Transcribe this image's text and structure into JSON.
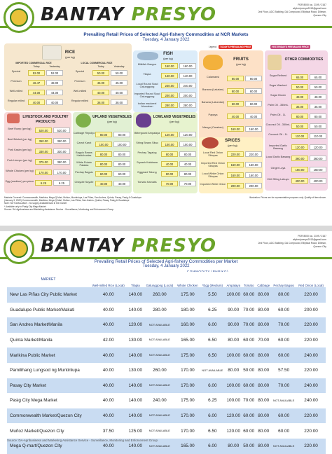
{
  "brand": {
    "name_a": "BANTAY",
    "name_b": "PRESYO"
  },
  "header": {
    "address_lines": [
      "PDR 8000 loc. 2199 / 2167",
      "afpbml.presyo2013@gmail.com",
      "2nd Floor, ADC Building, DA Compound, Elliptical Road, Diliman,",
      "Quezon City"
    ]
  },
  "page1": {
    "title": "Prevailing Retail Prices of Selected Agri-fishery Commodities at NCR Markets",
    "date": "Tuesday, 4 January 2022",
    "legend": {
      "label": "Legend:",
      "today": "TODAY'S PREVAILING PRICE",
      "yesterday": "YESTERDAY'S PREVAILING PRICE"
    },
    "col_today": "Today",
    "col_yesterday": "Yesterday",
    "rice": {
      "title": "RICE",
      "unit": "(per kg)",
      "imported_label": "IMPORTED COMMERCIAL RICE",
      "local_label": "LOCAL COMMERCIAL RICE",
      "imported": [
        {
          "name": "Special",
          "today": "52.00",
          "yesterday": "52.00"
        },
        {
          "name": "Premium",
          "today": "46.47",
          "yesterday": "48.00"
        },
        {
          "name": "Well-milled",
          "today": "44.00",
          "yesterday": "44.00"
        },
        {
          "name": "Regular milled",
          "today": "40.00",
          "yesterday": "40.00"
        }
      ],
      "local": [
        {
          "name": "Special",
          "today": "50.00",
          "yesterday": "50.00"
        },
        {
          "name": "Premium",
          "today": "45.00",
          "yesterday": "45.00"
        },
        {
          "name": "Well-milled",
          "today": "40.00",
          "yesterday": "40.00"
        },
        {
          "name": "Regular milled",
          "today": "38.00",
          "yesterday": "38.00"
        }
      ]
    },
    "fish": {
      "title": "FISH",
      "unit": "(per kg)",
      "items": [
        {
          "name": "Milkfish Bangus",
          "today": "160.00",
          "yesterday": "160.00"
        },
        {
          "name": "Tilapia",
          "today": "140.00",
          "yesterday": "140.00"
        },
        {
          "name": "Local Round Scad Galunggong",
          "today": "240.00",
          "yesterday": "240.00"
        },
        {
          "name": "Imported Round Scad Galunggong",
          "today": "200.00",
          "yesterday": "200.00"
        },
        {
          "name": "Indian mackerel Alumahan",
          "today": "280.00",
          "yesterday": "280.00"
        }
      ]
    },
    "fruits": {
      "title": "FRUITS",
      "unit": "(per kg)",
      "items": [
        {
          "name": "Calamansi",
          "today": "80.00",
          "yesterday": "80.00"
        },
        {
          "name": "Banana (Lakatan)",
          "today": "80.00",
          "yesterday": "80.00"
        },
        {
          "name": "Banana (Latundan)",
          "today": "60.00",
          "yesterday": "60.00"
        },
        {
          "name": "Papaya",
          "today": "40.00",
          "yesterday": "40.00"
        },
        {
          "name": "Mango (Carabao)",
          "today": "160.00",
          "yesterday": "160.00"
        }
      ]
    },
    "other": {
      "title": "OTHER COMMODITIES",
      "items": [
        {
          "name": "Sugar Refined",
          "today": "65.00",
          "yesterday": "65.00"
        },
        {
          "name": "Sugar Washed",
          "today": "50.00",
          "yesterday": "50.00"
        },
        {
          "name": "Sugar Brown",
          "today": "48.00",
          "yesterday": "48.00"
        },
        {
          "name": "Palm Oil - 350mL",
          "today": "35.00",
          "yesterday": "35.00"
        },
        {
          "name": "Palm Oil - 1L",
          "today": "80.00",
          "yesterday": "80.00"
        },
        {
          "name": "Coconut Oil - 350mL",
          "today": "50.00",
          "yesterday": "50.00"
        },
        {
          "name": "Coconut Oil - 1L",
          "today": "110.00",
          "yesterday": "110.00"
        }
      ]
    },
    "livestock": {
      "title": "LIVESTOCK AND POULTRY PRODUCTS",
      "items": [
        {
          "name": "Beef Rump (per kg)",
          "today": "520.00",
          "yesterday": "520.00"
        },
        {
          "name": "Beef Brisket (per kg)",
          "today": "350.00",
          "yesterday": "350.00"
        },
        {
          "name": "Pork Kasim (per kg)",
          "today": "330.00",
          "yesterday": "330.00"
        },
        {
          "name": "Pork Liempo (per kg)",
          "today": "375.00",
          "yesterday": "380.00"
        },
        {
          "name": "Whole Chicken (per kg)",
          "today": "170.00",
          "yesterday": "170.00"
        },
        {
          "name": "Egg (medium) per piece",
          "today": "6.25",
          "yesterday": "6.25"
        }
      ]
    },
    "upland": {
      "title": "UPLAND VEGETABLES",
      "unit": "(per kg)",
      "items": [
        {
          "name": "Cabbage Repolyo",
          "today": "80.00",
          "yesterday": "80.00"
        },
        {
          "name": "Carrot Karot",
          "today": "100.00",
          "yesterday": "100.00"
        },
        {
          "name": "Baguio Beans Habichuelas",
          "today": "80.00",
          "yesterday": "80.00"
        },
        {
          "name": "White Potato Patatas",
          "today": "80.00",
          "yesterday": "80.00"
        },
        {
          "name": "Pechay Baguio",
          "today": "60.00",
          "yesterday": "60.00"
        },
        {
          "name": "Chayote Sayote",
          "today": "40.00",
          "yesterday": "40.00"
        }
      ]
    },
    "lowland": {
      "title": "LOWLAND VEGETABLES",
      "unit": "(per kg)",
      "items": [
        {
          "name": "Bittergourd Ampalaya",
          "today": "120.00",
          "yesterday": "120.00"
        },
        {
          "name": "String Beans Sitao",
          "today": "100.00",
          "yesterday": "100.00"
        },
        {
          "name": "Pechay Tagalog",
          "today": "80.00",
          "yesterday": "80.00"
        },
        {
          "name": "Squash Kalabasa",
          "today": "40.00",
          "yesterday": "40.00"
        },
        {
          "name": "Eggplant Talong",
          "today": "80.00",
          "yesterday": "80.00"
        },
        {
          "name": "Tomato Kamatis",
          "today": "70.00",
          "yesterday": "70.00"
        }
      ]
    },
    "spices": {
      "title": "SPICES",
      "unit": "(per kg)",
      "items": [
        {
          "name": "Local Red Onion Sibuyas",
          "today": "220.00",
          "yesterday": "220.00"
        },
        {
          "name": "Imported Red Onion Sibuyas",
          "today": "160.00",
          "yesterday": "160.00"
        },
        {
          "name": "Local White Onion Sibuyas",
          "today": "160.00",
          "yesterday": "160.00"
        },
        {
          "name": "Imported White Onion",
          "today": "200.00",
          "yesterday": "200.00"
        }
      ]
    },
    "other2": {
      "items": [
        {
          "name": "Imported Garlic Bawang",
          "today": "120.00",
          "yesterday": "120.00"
        },
        {
          "name": "Local Garlic Bawang",
          "today": "360.00",
          "yesterday": "360.00"
        },
        {
          "name": "Ginger Luya",
          "today": "160.00",
          "yesterday": "160.00"
        },
        {
          "name": "Chili Siling Labuyo",
          "today": "400.00",
          "yesterday": "400.00"
        }
      ]
    },
    "notes": [
      "Markets Covered: Commonwealth, Marikina, Mega Q-Mart, Muñoz, Muntinlupa, Las Piñas, San Andres, Quinta, Pasay, Pasig & Guadalupe",
      "(January 3, 2022) Commonwealth, Marikina, Mega Q-Mart, Muñoz, Las Piñas, San Andres, Quinta, Pasay, Pasig & Guadalupe",
      "Note: NOT AVAILABLE - No supply available/sold in the market",
      "* Available only in Pasig City Mega Market",
      "Source: DA-Agribusiness and Marketing Assistance Service - Surveillance, Monitoring and Enforcement Group"
    ],
    "note_right": "Illustration: Prices are for representative purposes only. Quality of item shown."
  },
  "page2": {
    "title": "Prevailing Retail Prices of Selected Agri-fishery Commodities per Market",
    "date": "Tuesday, 4 January 2022",
    "commodity_label": "COMMODITY (PHP/KG)",
    "columns": [
      "MARKET",
      "Well-milled Rice (Local)",
      "Tilapia",
      "Galunggong (Local)",
      "Whole Chicken",
      "*Egg (Medium)",
      "Ampalaya",
      "Tomato",
      "Cabbage",
      "Pechay Baguio",
      "Red Onion (Local)"
    ],
    "rows": [
      [
        "New Las Piñas City Public Market",
        "40.00",
        "140.00",
        "260.00",
        "175.00",
        "5.50",
        "100.00",
        "60.00",
        "80.00",
        "80.00",
        "220.00"
      ],
      [
        "Guadalupe Public Market/Makati",
        "40.00",
        "140.00",
        "280.00",
        "180.00",
        "6.25",
        "90.00",
        "70.00",
        "80.00",
        "60.00",
        "200.00"
      ],
      [
        "San Andres Market/Manila",
        "40.00",
        "120.00",
        "NOT AVAILABLE",
        "160.00",
        "6.00",
        "90.00",
        "70.00",
        "80.00",
        "70.00",
        "220.00"
      ],
      [
        "Quinta Market/Manila",
        "42.00",
        "130.00",
        "NOT AVAILABLE",
        "165.00",
        "6.50",
        "80.00",
        "60.00",
        "70.00",
        "60.00",
        "220.00"
      ],
      [
        "Marikina Public Market",
        "40.00",
        "140.00",
        "NOT AVAILABLE",
        "175.00",
        "6.50",
        "100.00",
        "60.00",
        "80.00",
        "60.00",
        "240.00"
      ],
      [
        "Pamilihang Lungsod ng Muntinlupa",
        "40.00",
        "130.00",
        "260.00",
        "170.00",
        "NOT AVAILABLE",
        "80.00",
        "50.00",
        "80.00",
        "57.50",
        "220.00"
      ],
      [
        "Pasay City Market",
        "40.00",
        "140.00",
        "NOT AVAILABLE",
        "170.00",
        "6.00",
        "100.00",
        "60.00",
        "80.00",
        "70.00",
        "240.00"
      ],
      [
        "Pasig City Mega Market",
        "40.00",
        "140.00",
        "240.00",
        "175.00",
        "6.25",
        "100.00",
        "70.00",
        "80.00",
        "NOT AVAILABLE",
        "240.00"
      ],
      [
        "Commonwealth Market/Quezon City",
        "40.00",
        "140.00",
        "NOT AVAILABLE",
        "170.00",
        "6.00",
        "120.00",
        "60.00",
        "80.00",
        "60.00",
        "220.00"
      ],
      [
        "Muñoz Market/Quezon City",
        "37.50",
        "125.00",
        "NOT AVAILABLE",
        "170.00",
        "6.50",
        "120.00",
        "60.00",
        "80.00",
        "60.00",
        "220.00"
      ],
      [
        "Mega Q-mart/Quezon City",
        "40.00",
        "140.00",
        "NOT AVAILABLE",
        "165.00",
        "6.00",
        "80.00",
        "50.00",
        "80.00",
        "NOT AVAILABLE",
        "220.00"
      ]
    ],
    "source": "Source: DA-Agribusiness and Marketing Assistance Service - Surveillance, Monitoring and Enforcement Group"
  }
}
